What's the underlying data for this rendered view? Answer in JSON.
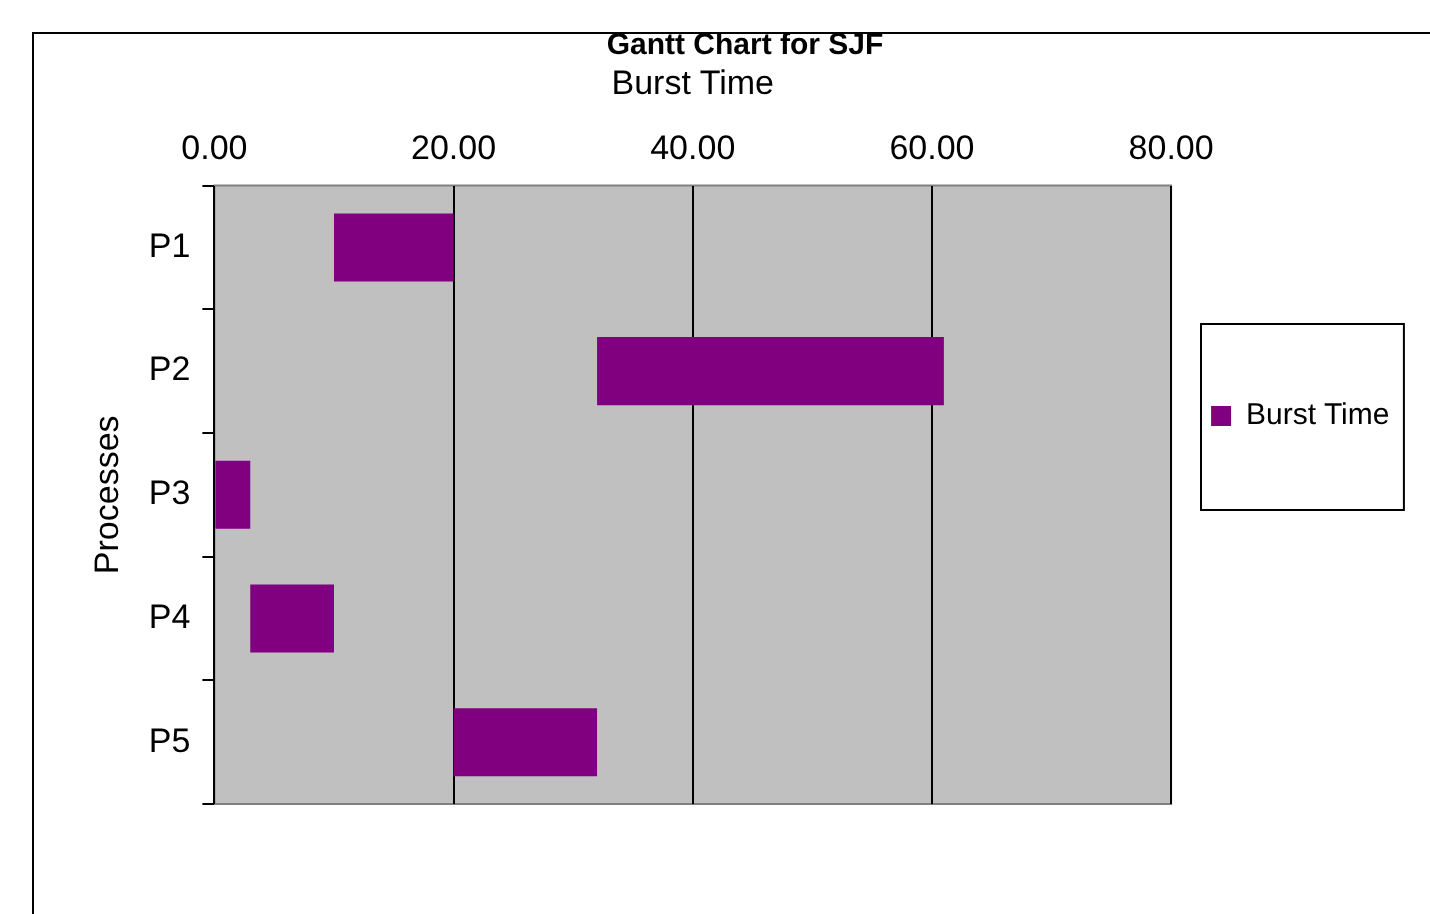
{
  "chart_data": {
    "type": "bar",
    "orientation": "horizontal",
    "title": "Gantt Chart for SJF",
    "xlabel": "Burst Time",
    "ylabel": "Processes",
    "categories": [
      "P1",
      "P2",
      "P3",
      "P4",
      "P5"
    ],
    "series": [
      {
        "name": "Burst Time",
        "color": "#800080",
        "base": [
          10,
          32,
          0,
          3,
          20
        ],
        "values": [
          10,
          29,
          3,
          7,
          12
        ]
      }
    ],
    "xlim": [
      0,
      80
    ],
    "xticks": [
      {
        "value": 0,
        "label": "0.00"
      },
      {
        "value": 20,
        "label": "20.00"
      },
      {
        "value": 40,
        "label": "40.00"
      },
      {
        "value": 60,
        "label": "60.00"
      },
      {
        "value": 80,
        "label": "80.00"
      }
    ],
    "grid": "x",
    "legend": "right"
  }
}
